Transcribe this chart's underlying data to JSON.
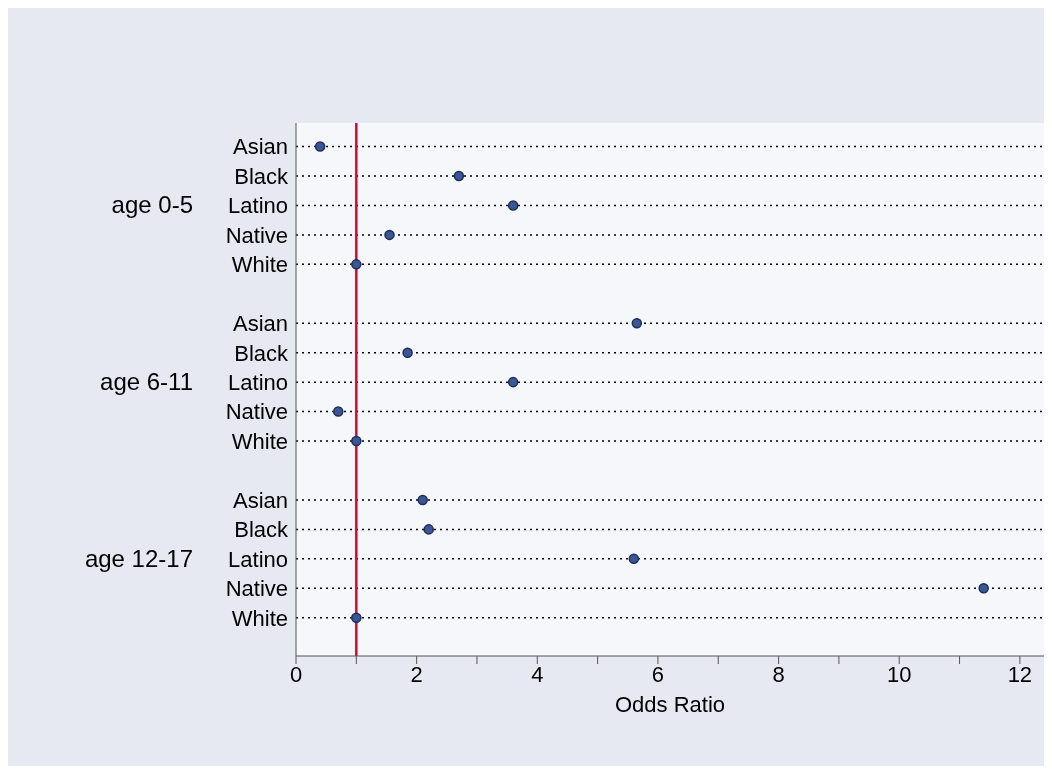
{
  "chart_data": {
    "type": "scatter",
    "orientation": "horizontal",
    "xlabel": "Odds Ratio",
    "categories": [
      "Asian",
      "Black",
      "Latino",
      "Native",
      "White",
      null,
      "Asian",
      "Black",
      "Latino",
      "Native",
      "White",
      null,
      "Asian",
      "Black",
      "Latino",
      "Native",
      "White"
    ],
    "values": [
      0.4,
      2.7,
      3.6,
      1.55,
      1.0,
      null,
      5.65,
      1.85,
      3.6,
      0.7,
      1.0,
      null,
      2.1,
      2.2,
      5.6,
      11.4,
      1.0
    ],
    "color": "#3b5694",
    "annotations": [
      "age 0-5",
      "age 6-11",
      "age 12-17"
    ],
    "xlim": [
      0,
      12.4
    ],
    "xticks": [
      0,
      {
        "value": 1,
        "label": null
      },
      2,
      {
        "value": 3,
        "label": null
      },
      4,
      {
        "value": 5,
        "label": null
      },
      6,
      {
        "value": 7,
        "label": null
      },
      8,
      {
        "value": 9,
        "label": null
      },
      10,
      {
        "value": 11,
        "label": null
      },
      12
    ],
    "ref_lines": [
      {
        "axis": "x",
        "value": 1,
        "color": "#c8102e"
      }
    ],
    "grid": "y",
    "line_style": "dotted",
    "marker": "circle"
  }
}
